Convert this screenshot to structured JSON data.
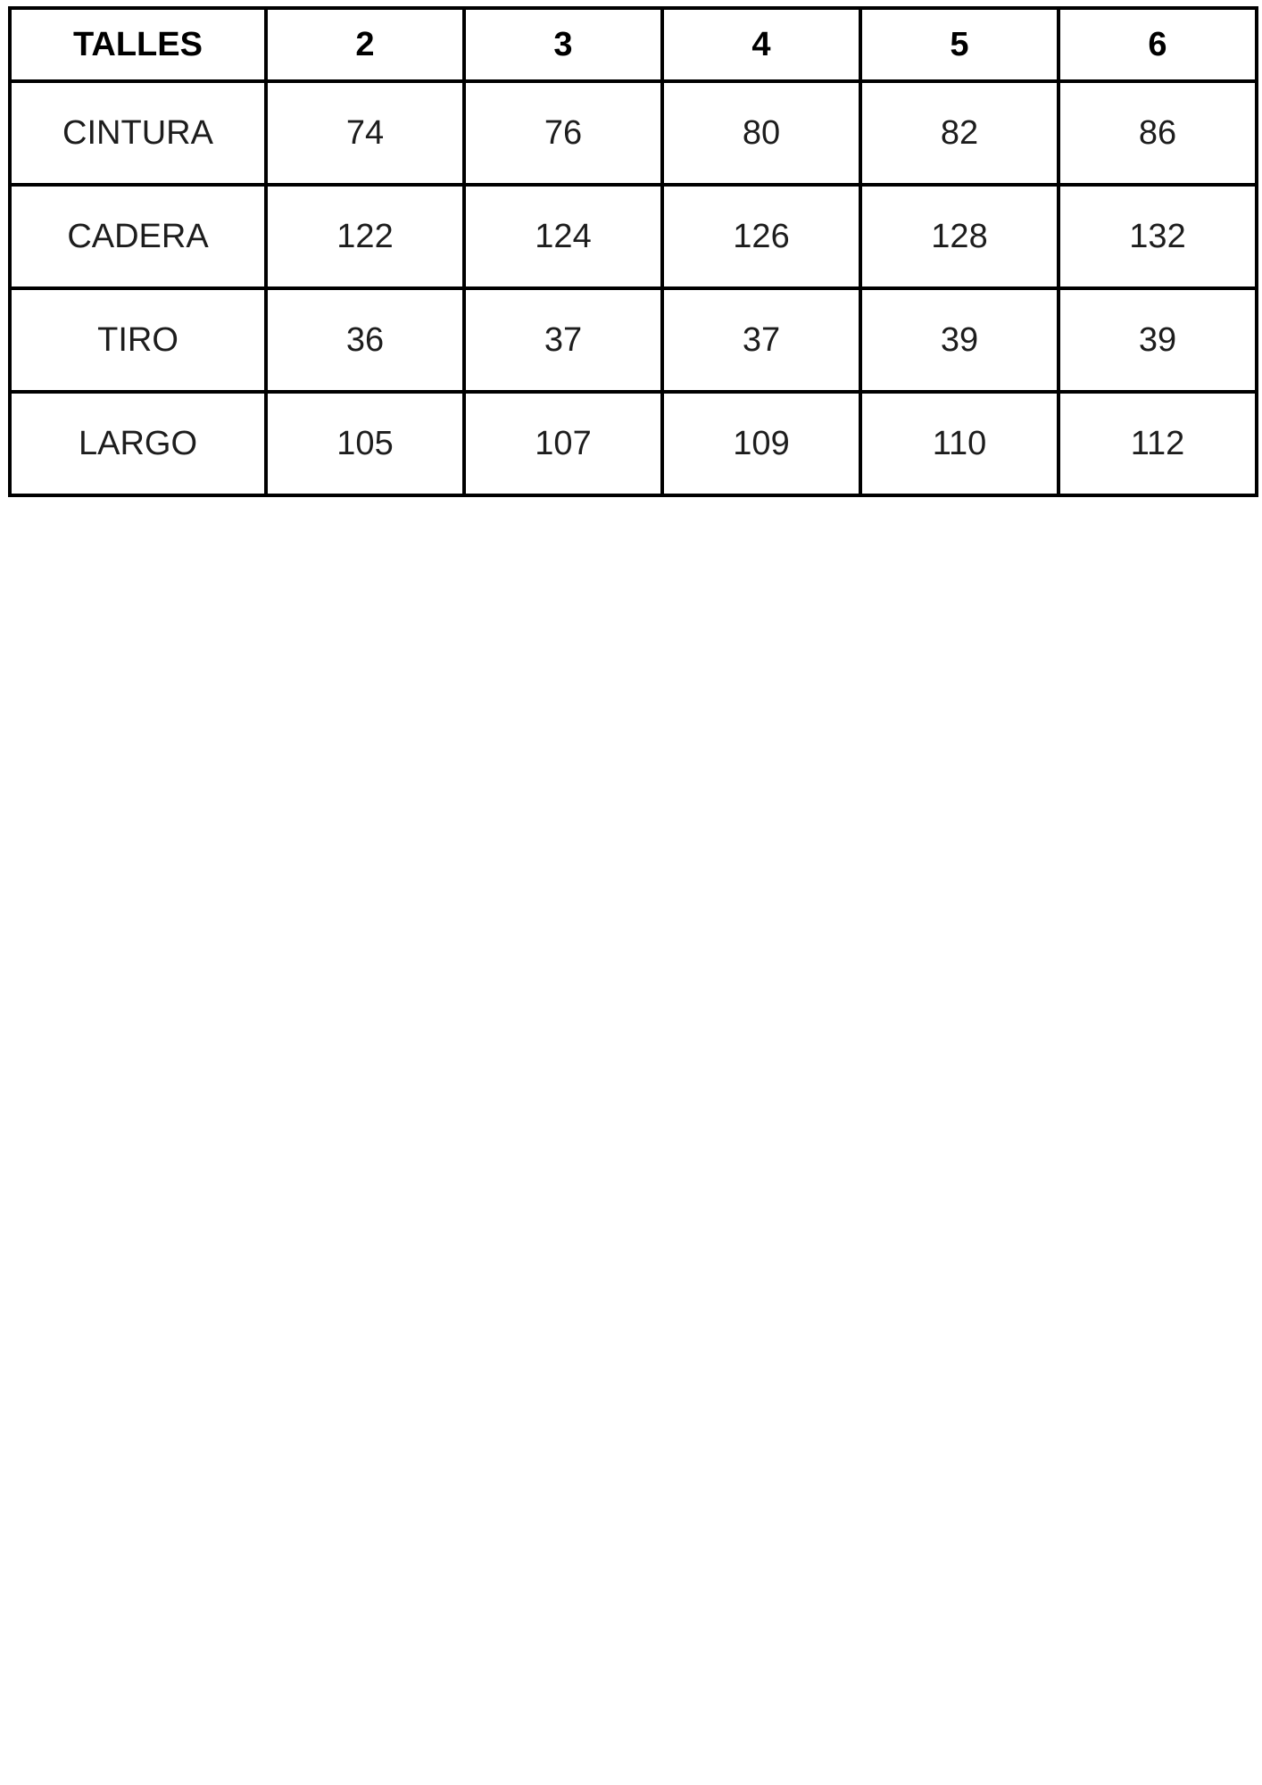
{
  "chart_data": {
    "type": "table",
    "title": "TALLES",
    "categories": [
      "2",
      "3",
      "4",
      "5",
      "6"
    ],
    "series": [
      {
        "name": "CINTURA",
        "values": [
          74,
          76,
          80,
          82,
          86
        ]
      },
      {
        "name": "CADERA",
        "values": [
          122,
          124,
          126,
          128,
          132
        ]
      },
      {
        "name": "TIRO",
        "values": [
          36,
          37,
          37,
          39,
          39
        ]
      },
      {
        "name": "LARGO",
        "values": [
          105,
          107,
          109,
          110,
          112
        ]
      }
    ]
  },
  "table": {
    "header": {
      "label": "TALLES",
      "sizes": [
        "2",
        "3",
        "4",
        "5",
        "6"
      ]
    },
    "rows": [
      {
        "label": "CINTURA",
        "values": [
          "74",
          "76",
          "80",
          "82",
          "86"
        ]
      },
      {
        "label": "CADERA",
        "values": [
          "122",
          "124",
          "126",
          "128",
          "132"
        ]
      },
      {
        "label": "TIRO",
        "values": [
          "36",
          "37",
          "37",
          "39",
          "39"
        ]
      },
      {
        "label": "LARGO",
        "values": [
          "105",
          "107",
          "109",
          "110",
          "112"
        ]
      }
    ]
  },
  "colors": {
    "border": "#000000",
    "header_text": "#000000",
    "body_text": "#1d1d1d",
    "background": "#ffffff"
  }
}
